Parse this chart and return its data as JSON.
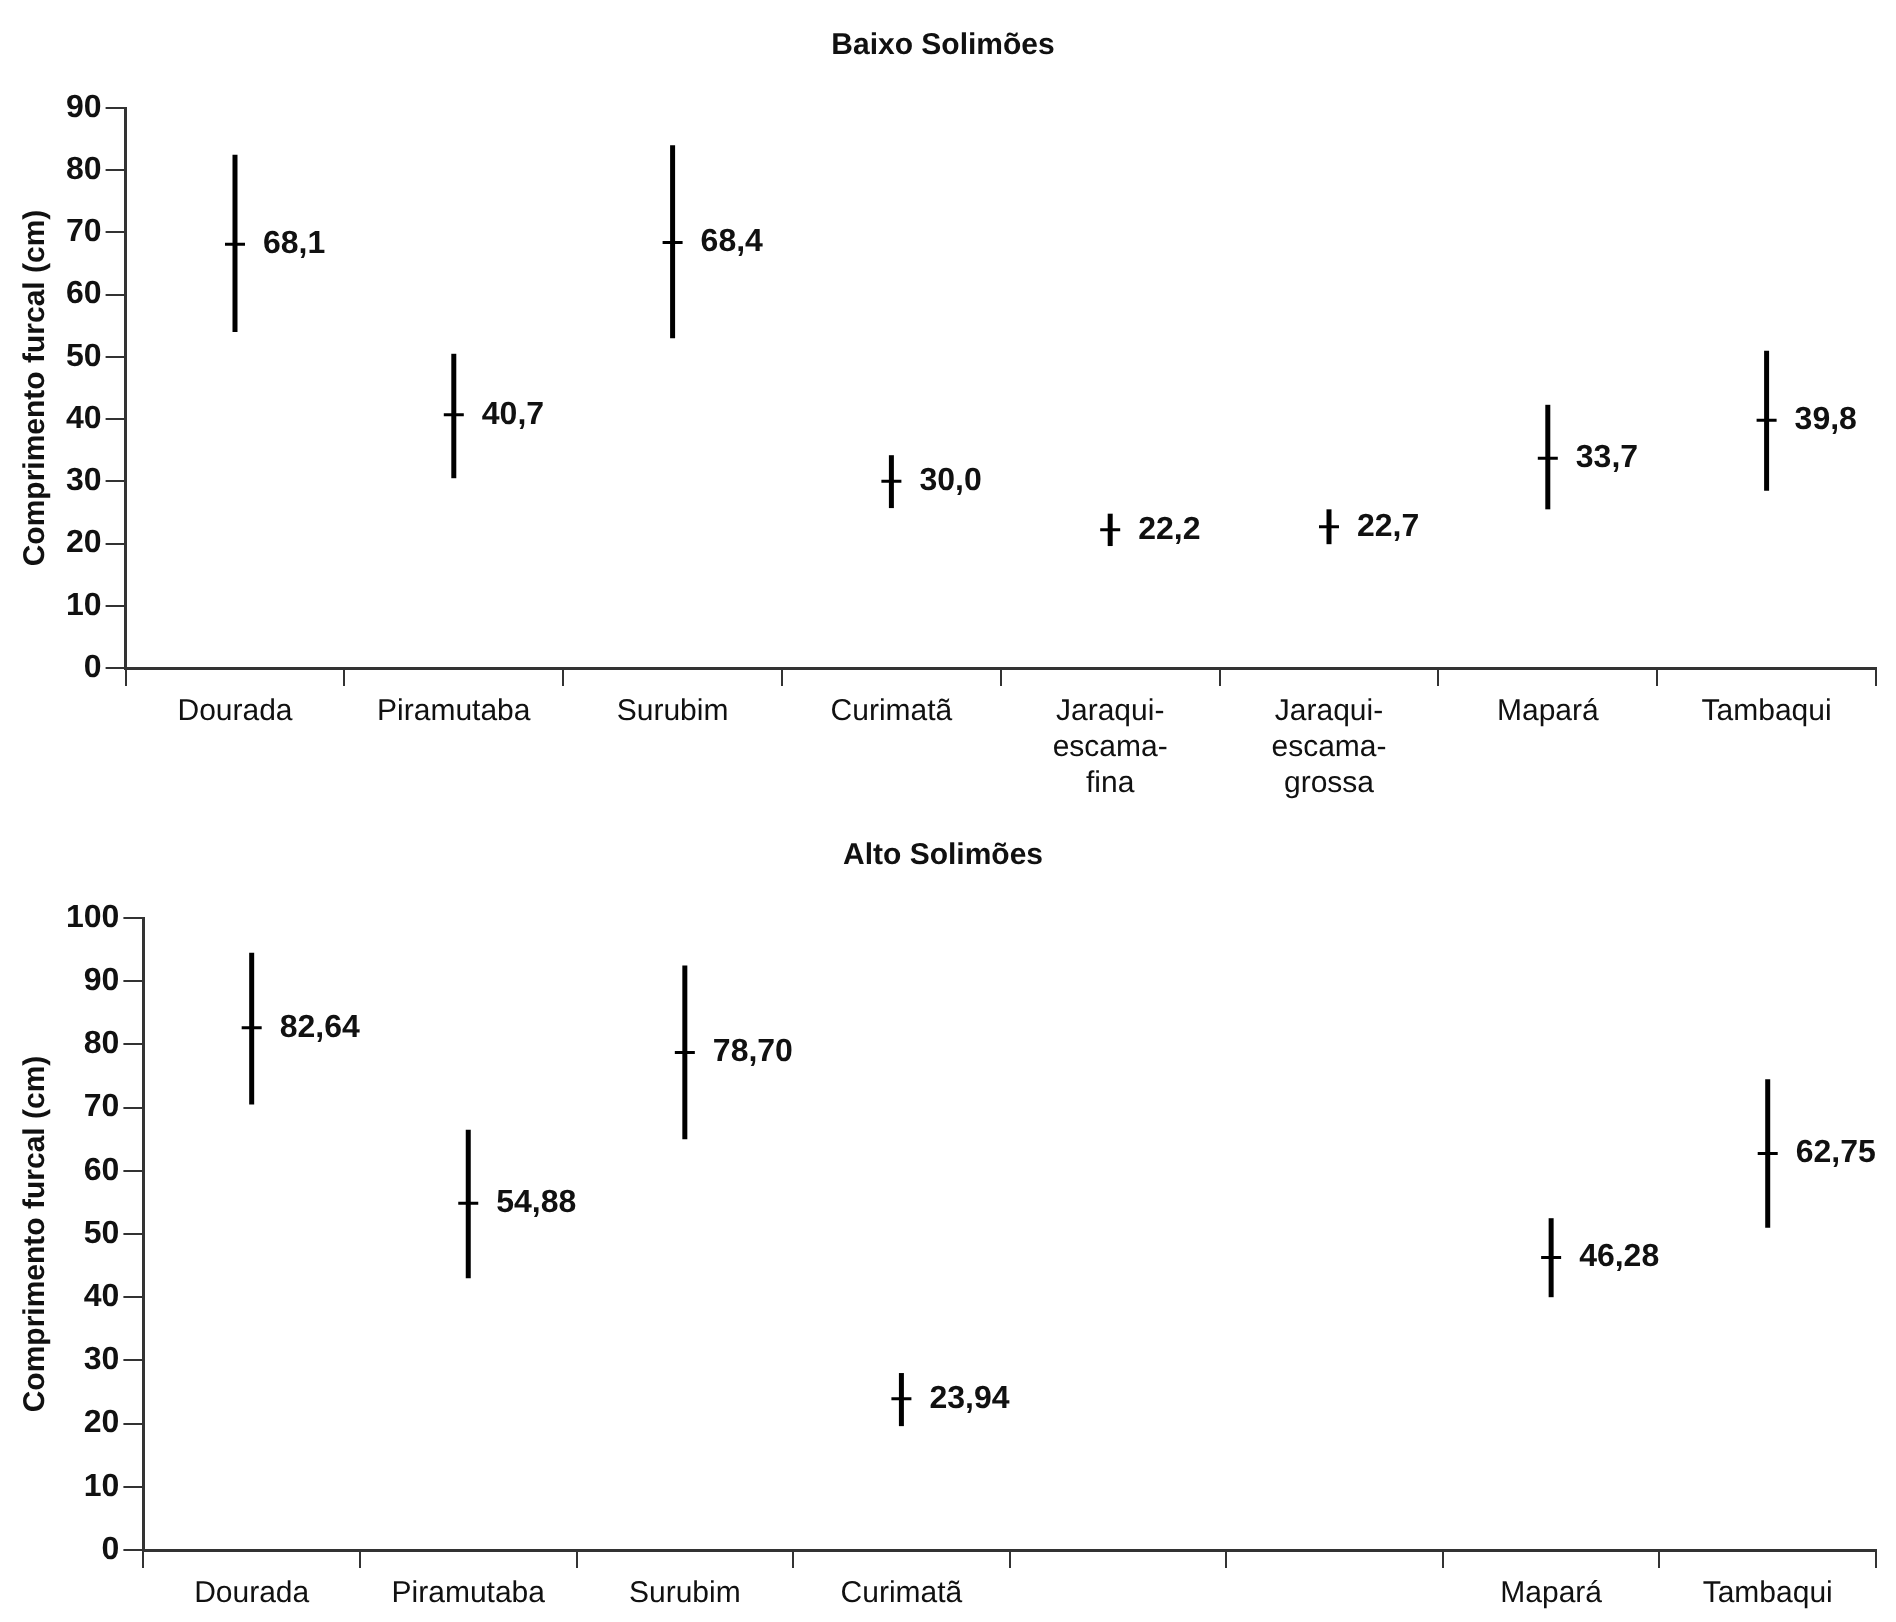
{
  "chart_data": [
    {
      "type": "scatter",
      "title": "Baixo Solimões",
      "ylabel": "Comprimento furcal (cm)",
      "categories": [
        "Dourada",
        "Piramutaba",
        "Surubim",
        "Curimatã",
        "Jaraqui-escama-fina",
        "Jaraqui-escama-grossa",
        "Mapará",
        "Tambaqui"
      ],
      "series": [
        {
          "color": "#000000",
          "values": [
            68.1,
            40.7,
            68.4,
            30.0,
            22.2,
            22.7,
            33.7,
            39.8
          ],
          "errors": [
            [
              54,
              82.5
            ],
            [
              30.5,
              50.5
            ],
            [
              53,
              84
            ],
            [
              25.7,
              34.2
            ],
            [
              19.6,
              24.8
            ],
            [
              19.9,
              25.5
            ],
            [
              25.5,
              42.3
            ],
            [
              28.5,
              51
            ]
          ],
          "value_labels": [
            "68,1",
            "40,7",
            "68,4",
            "30,0",
            "22,2",
            "22,7",
            "33,7",
            "39,8"
          ]
        }
      ],
      "ylim": [
        0,
        90
      ],
      "yticks": [
        0,
        10,
        20,
        30,
        40,
        50,
        60,
        70,
        80,
        90
      ],
      "grid": false,
      "legend": false,
      "marker": "cross"
    },
    {
      "type": "scatter",
      "title": "Alto Solimões",
      "ylabel": "Comprimento furcal (cm)",
      "categories": [
        "Dourada",
        "Piramutaba",
        "Surubim",
        "Curimatã",
        null,
        null,
        "Mapará",
        "Tambaqui"
      ],
      "series": [
        {
          "color": "#000000",
          "values": [
            82.64,
            54.88,
            78.7,
            23.94,
            null,
            null,
            46.28,
            62.75
          ],
          "errors": [
            [
              70.5,
              94.5
            ],
            [
              43,
              66.5
            ],
            [
              65,
              92.5
            ],
            [
              19.6,
              28
            ],
            null,
            null,
            [
              40,
              52.5
            ],
            [
              51,
              74.5
            ]
          ],
          "value_labels": [
            "82,64",
            "54,88",
            "78,70",
            "23,94",
            null,
            null,
            "46,28",
            "62,75"
          ]
        }
      ],
      "ylim": [
        0,
        100
      ],
      "yticks": [
        0,
        10,
        20,
        30,
        40,
        50,
        60,
        70,
        80,
        90,
        100
      ],
      "grid": false,
      "legend": false,
      "marker": "cross"
    }
  ]
}
